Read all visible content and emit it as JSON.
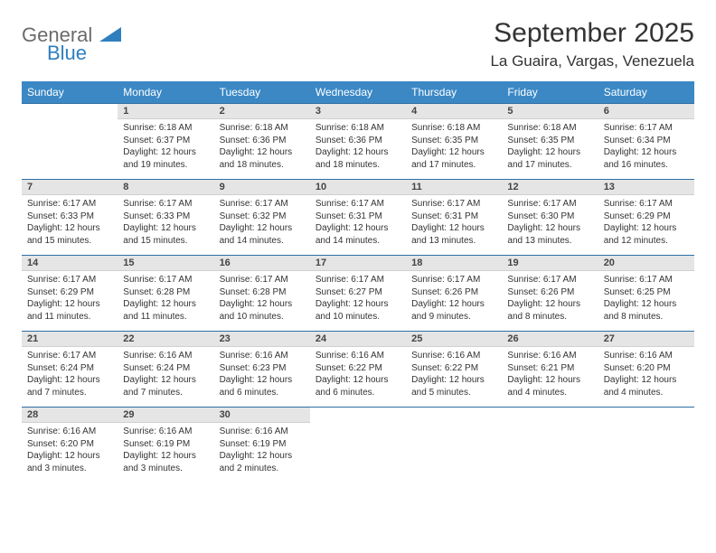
{
  "brand": {
    "part1": "General",
    "part2": "Blue"
  },
  "title": "September 2025",
  "location": "La Guaira, Vargas, Venezuela",
  "colors": {
    "header_bg": "#3b88c5",
    "header_text": "#ffffff",
    "daynum_bg": "#e5e5e5",
    "border_accent": "#2f6fa3",
    "logo_gray": "#6b6b6b",
    "logo_blue": "#2f7fbf",
    "text": "#333333"
  },
  "day_headers": [
    "Sunday",
    "Monday",
    "Tuesday",
    "Wednesday",
    "Thursday",
    "Friday",
    "Saturday"
  ],
  "weeks": [
    [
      {
        "n": "",
        "sunrise": "",
        "sunset": "",
        "daylight": ""
      },
      {
        "n": "1",
        "sunrise": "Sunrise: 6:18 AM",
        "sunset": "Sunset: 6:37 PM",
        "daylight": "Daylight: 12 hours and 19 minutes."
      },
      {
        "n": "2",
        "sunrise": "Sunrise: 6:18 AM",
        "sunset": "Sunset: 6:36 PM",
        "daylight": "Daylight: 12 hours and 18 minutes."
      },
      {
        "n": "3",
        "sunrise": "Sunrise: 6:18 AM",
        "sunset": "Sunset: 6:36 PM",
        "daylight": "Daylight: 12 hours and 18 minutes."
      },
      {
        "n": "4",
        "sunrise": "Sunrise: 6:18 AM",
        "sunset": "Sunset: 6:35 PM",
        "daylight": "Daylight: 12 hours and 17 minutes."
      },
      {
        "n": "5",
        "sunrise": "Sunrise: 6:18 AM",
        "sunset": "Sunset: 6:35 PM",
        "daylight": "Daylight: 12 hours and 17 minutes."
      },
      {
        "n": "6",
        "sunrise": "Sunrise: 6:17 AM",
        "sunset": "Sunset: 6:34 PM",
        "daylight": "Daylight: 12 hours and 16 minutes."
      }
    ],
    [
      {
        "n": "7",
        "sunrise": "Sunrise: 6:17 AM",
        "sunset": "Sunset: 6:33 PM",
        "daylight": "Daylight: 12 hours and 15 minutes."
      },
      {
        "n": "8",
        "sunrise": "Sunrise: 6:17 AM",
        "sunset": "Sunset: 6:33 PM",
        "daylight": "Daylight: 12 hours and 15 minutes."
      },
      {
        "n": "9",
        "sunrise": "Sunrise: 6:17 AM",
        "sunset": "Sunset: 6:32 PM",
        "daylight": "Daylight: 12 hours and 14 minutes."
      },
      {
        "n": "10",
        "sunrise": "Sunrise: 6:17 AM",
        "sunset": "Sunset: 6:31 PM",
        "daylight": "Daylight: 12 hours and 14 minutes."
      },
      {
        "n": "11",
        "sunrise": "Sunrise: 6:17 AM",
        "sunset": "Sunset: 6:31 PM",
        "daylight": "Daylight: 12 hours and 13 minutes."
      },
      {
        "n": "12",
        "sunrise": "Sunrise: 6:17 AM",
        "sunset": "Sunset: 6:30 PM",
        "daylight": "Daylight: 12 hours and 13 minutes."
      },
      {
        "n": "13",
        "sunrise": "Sunrise: 6:17 AM",
        "sunset": "Sunset: 6:29 PM",
        "daylight": "Daylight: 12 hours and 12 minutes."
      }
    ],
    [
      {
        "n": "14",
        "sunrise": "Sunrise: 6:17 AM",
        "sunset": "Sunset: 6:29 PM",
        "daylight": "Daylight: 12 hours and 11 minutes."
      },
      {
        "n": "15",
        "sunrise": "Sunrise: 6:17 AM",
        "sunset": "Sunset: 6:28 PM",
        "daylight": "Daylight: 12 hours and 11 minutes."
      },
      {
        "n": "16",
        "sunrise": "Sunrise: 6:17 AM",
        "sunset": "Sunset: 6:28 PM",
        "daylight": "Daylight: 12 hours and 10 minutes."
      },
      {
        "n": "17",
        "sunrise": "Sunrise: 6:17 AM",
        "sunset": "Sunset: 6:27 PM",
        "daylight": "Daylight: 12 hours and 10 minutes."
      },
      {
        "n": "18",
        "sunrise": "Sunrise: 6:17 AM",
        "sunset": "Sunset: 6:26 PM",
        "daylight": "Daylight: 12 hours and 9 minutes."
      },
      {
        "n": "19",
        "sunrise": "Sunrise: 6:17 AM",
        "sunset": "Sunset: 6:26 PM",
        "daylight": "Daylight: 12 hours and 8 minutes."
      },
      {
        "n": "20",
        "sunrise": "Sunrise: 6:17 AM",
        "sunset": "Sunset: 6:25 PM",
        "daylight": "Daylight: 12 hours and 8 minutes."
      }
    ],
    [
      {
        "n": "21",
        "sunrise": "Sunrise: 6:17 AM",
        "sunset": "Sunset: 6:24 PM",
        "daylight": "Daylight: 12 hours and 7 minutes."
      },
      {
        "n": "22",
        "sunrise": "Sunrise: 6:16 AM",
        "sunset": "Sunset: 6:24 PM",
        "daylight": "Daylight: 12 hours and 7 minutes."
      },
      {
        "n": "23",
        "sunrise": "Sunrise: 6:16 AM",
        "sunset": "Sunset: 6:23 PM",
        "daylight": "Daylight: 12 hours and 6 minutes."
      },
      {
        "n": "24",
        "sunrise": "Sunrise: 6:16 AM",
        "sunset": "Sunset: 6:22 PM",
        "daylight": "Daylight: 12 hours and 6 minutes."
      },
      {
        "n": "25",
        "sunrise": "Sunrise: 6:16 AM",
        "sunset": "Sunset: 6:22 PM",
        "daylight": "Daylight: 12 hours and 5 minutes."
      },
      {
        "n": "26",
        "sunrise": "Sunrise: 6:16 AM",
        "sunset": "Sunset: 6:21 PM",
        "daylight": "Daylight: 12 hours and 4 minutes."
      },
      {
        "n": "27",
        "sunrise": "Sunrise: 6:16 AM",
        "sunset": "Sunset: 6:20 PM",
        "daylight": "Daylight: 12 hours and 4 minutes."
      }
    ],
    [
      {
        "n": "28",
        "sunrise": "Sunrise: 6:16 AM",
        "sunset": "Sunset: 6:20 PM",
        "daylight": "Daylight: 12 hours and 3 minutes."
      },
      {
        "n": "29",
        "sunrise": "Sunrise: 6:16 AM",
        "sunset": "Sunset: 6:19 PM",
        "daylight": "Daylight: 12 hours and 3 minutes."
      },
      {
        "n": "30",
        "sunrise": "Sunrise: 6:16 AM",
        "sunset": "Sunset: 6:19 PM",
        "daylight": "Daylight: 12 hours and 2 minutes."
      },
      {
        "n": "",
        "sunrise": "",
        "sunset": "",
        "daylight": ""
      },
      {
        "n": "",
        "sunrise": "",
        "sunset": "",
        "daylight": ""
      },
      {
        "n": "",
        "sunrise": "",
        "sunset": "",
        "daylight": ""
      },
      {
        "n": "",
        "sunrise": "",
        "sunset": "",
        "daylight": ""
      }
    ]
  ]
}
